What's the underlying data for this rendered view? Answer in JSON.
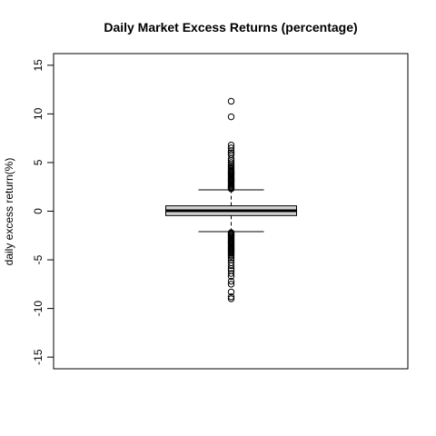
{
  "chart_data": {
    "type": "boxplot",
    "title": "Daily Market Excess Returns (percentage)",
    "xlabel": "",
    "ylabel": "daily excess return(%)",
    "ylim": [
      -16.2,
      16.2
    ],
    "yticks": [
      -15,
      -10,
      -5,
      0,
      5,
      10,
      15
    ],
    "ytick_labels": [
      "-15",
      "-10",
      "-5",
      "0",
      "5",
      "10",
      "15"
    ],
    "box": {
      "q1": -0.45,
      "median": 0.05,
      "q3": 0.55,
      "whisker_low": -2.1,
      "whisker_high": 2.2,
      "fill": "#d3d3d3"
    },
    "outliers_high": [
      2.3,
      2.4,
      2.5,
      2.6,
      2.7,
      2.8,
      2.9,
      3.0,
      3.1,
      3.2,
      3.3,
      3.4,
      3.5,
      3.6,
      3.7,
      3.8,
      3.9,
      4.0,
      4.1,
      4.2,
      4.35,
      4.5,
      4.65,
      4.8,
      5.0,
      5.2,
      5.4,
      5.8,
      6.0,
      6.2,
      6.5,
      6.8,
      9.7,
      11.3
    ],
    "outliers_low": [
      -2.2,
      -2.3,
      -2.4,
      -2.5,
      -2.6,
      -2.7,
      -2.8,
      -2.9,
      -3.0,
      -3.1,
      -3.2,
      -3.3,
      -3.4,
      -3.5,
      -3.6,
      -3.7,
      -3.8,
      -3.9,
      -4.0,
      -4.1,
      -4.2,
      -4.3,
      -4.45,
      -4.6,
      -4.8,
      -5.0,
      -5.3,
      -5.6,
      -5.9,
      -6.1,
      -6.4,
      -6.7,
      -7.2,
      -7.5,
      -8.3,
      -8.8,
      -9.0
    ],
    "grid": false,
    "legend": "none"
  }
}
